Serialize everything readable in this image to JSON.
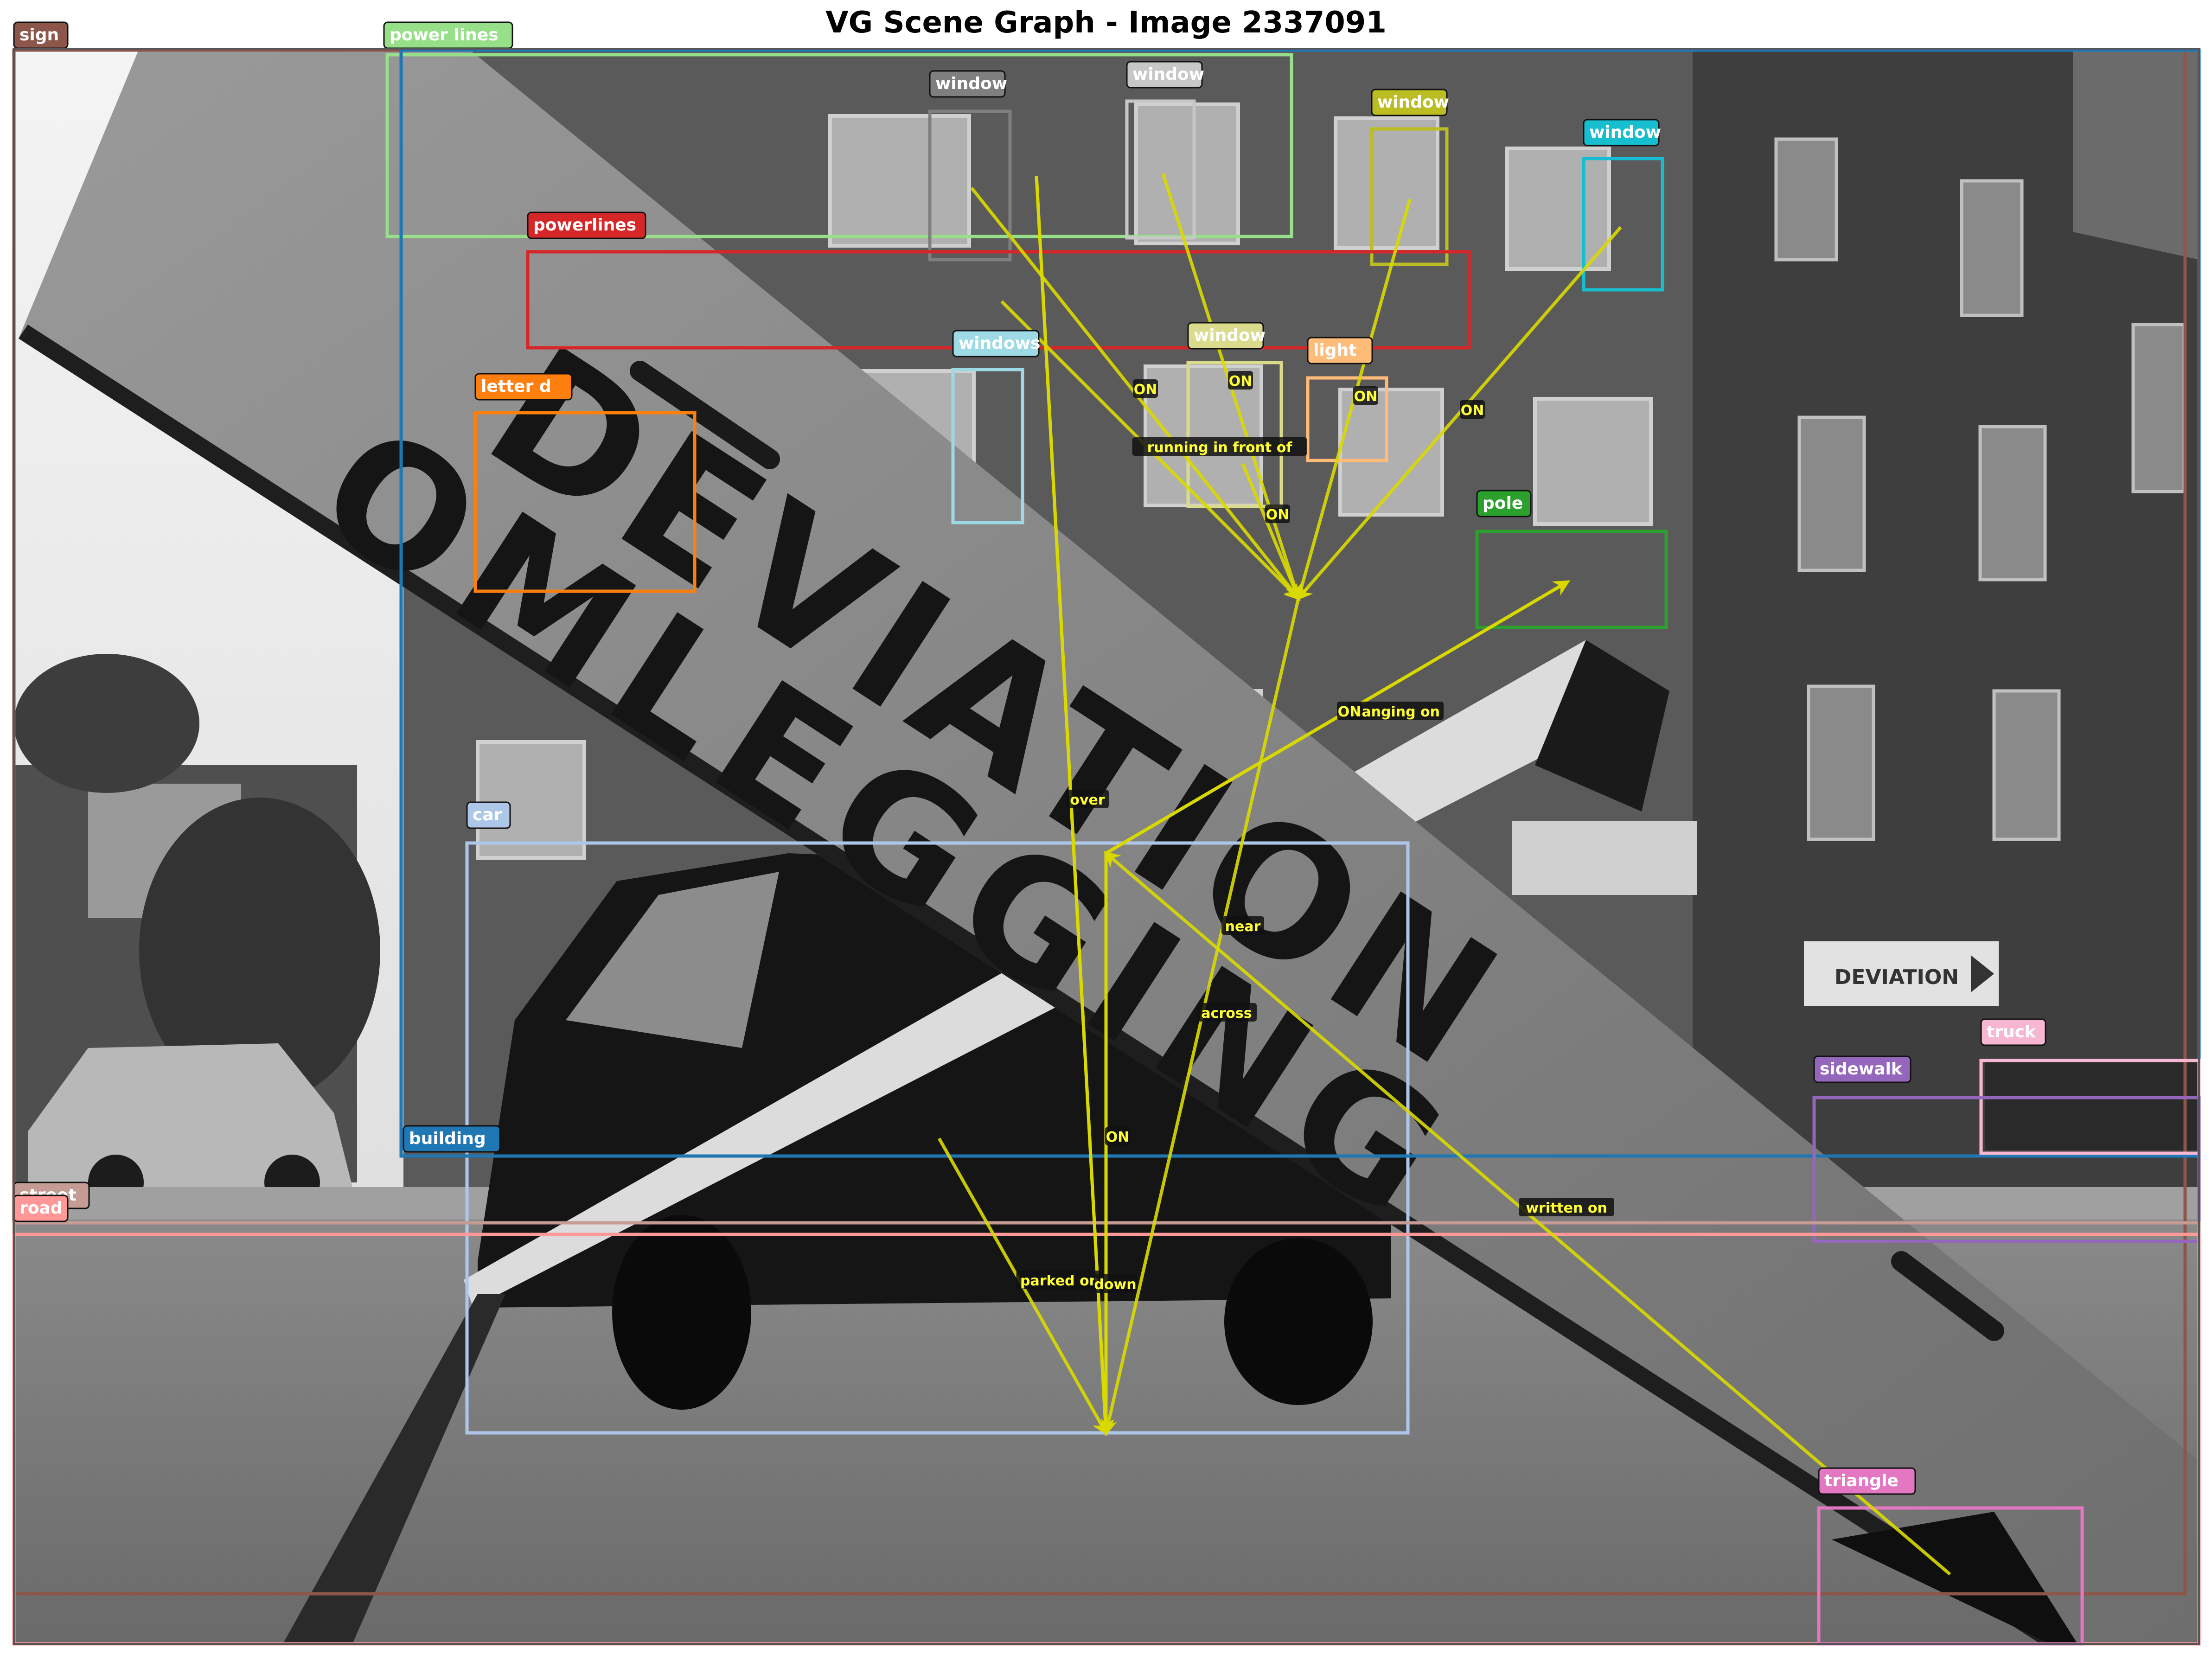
{
  "title": "VG Scene Graph - Image 2337091",
  "colors": {
    "edge": "#d9d900",
    "edge_label_text": "#ffff33",
    "edge_label_bg": "#111111",
    "node_label_text": "#ffffff"
  },
  "photo_text": {
    "sign_line_1": "DEVIATION",
    "sign_line_2": "OMLEGGING",
    "street_sign": "DEVIATION"
  },
  "nodes": [
    {
      "id": "sign",
      "label": "sign",
      "color": "#8c564b"
    },
    {
      "id": "power_lines",
      "label": "power lines",
      "color": "#98df8a"
    },
    {
      "id": "window_1",
      "label": "window",
      "color": "#7f7f7f"
    },
    {
      "id": "window_2",
      "label": "window",
      "color": "#c7c7c7"
    },
    {
      "id": "window_3",
      "label": "window",
      "color": "#bcbd22"
    },
    {
      "id": "window_4",
      "label": "window",
      "color": "#17becf"
    },
    {
      "id": "powerlines",
      "label": "powerlines",
      "color": "#d62728"
    },
    {
      "id": "windows",
      "label": "windows",
      "color": "#9edae5"
    },
    {
      "id": "window_5",
      "label": "window",
      "color": "#dbdb8d"
    },
    {
      "id": "light",
      "label": "light",
      "color": "#ffbb78"
    },
    {
      "id": "letter_d",
      "label": "letter d",
      "color": "#ff7f0e"
    },
    {
      "id": "pole",
      "label": "pole",
      "color": "#2ca02c"
    },
    {
      "id": "car",
      "label": "car",
      "color": "#aec7e8"
    },
    {
      "id": "building",
      "label": "building",
      "color": "#1f77b4"
    },
    {
      "id": "truck",
      "label": "truck",
      "color": "#f7b6d2"
    },
    {
      "id": "sidewalk",
      "label": "sidewalk",
      "color": "#9467bd"
    },
    {
      "id": "street",
      "label": "street",
      "color": "#c49c94"
    },
    {
      "id": "road",
      "label": "road",
      "color": "#ff9896"
    },
    {
      "id": "triangle",
      "label": "triangle",
      "color": "#e377c2"
    }
  ],
  "edges": [
    {
      "id": "on_window_1",
      "from": "window_1",
      "to": "building",
      "label": "ON"
    },
    {
      "id": "on_window_2",
      "from": "window_2",
      "to": "building",
      "label": "ON"
    },
    {
      "id": "on_window_3",
      "from": "window_3",
      "to": "building",
      "label": "ON"
    },
    {
      "id": "on_window_4",
      "from": "window_4",
      "to": "building",
      "label": "ON"
    },
    {
      "id": "on_window_5",
      "from": "window_5",
      "to": "building",
      "label": "ON"
    },
    {
      "id": "running",
      "from": "powerlines",
      "to": "building",
      "label": "running in front of"
    },
    {
      "id": "over",
      "from": "power_lines",
      "to": "street",
      "label": "over"
    },
    {
      "id": "hanging",
      "from": "sign",
      "to": "pole",
      "label": "hanging on"
    },
    {
      "id": "on_sign",
      "from": "sign",
      "to": "pole",
      "label": "ON"
    },
    {
      "id": "near",
      "from": "building",
      "to": "street",
      "label": "near"
    },
    {
      "id": "across",
      "from": "sign",
      "to": "street",
      "label": "across"
    },
    {
      "id": "on_car",
      "from": "sign",
      "to": "street",
      "label": "ON"
    },
    {
      "id": "parked",
      "from": "car",
      "to": "street",
      "label": "parked on"
    },
    {
      "id": "down",
      "from": "sign",
      "to": "street",
      "label": "down"
    },
    {
      "id": "written",
      "from": "triangle",
      "to": "sign",
      "label": "written on"
    }
  ]
}
